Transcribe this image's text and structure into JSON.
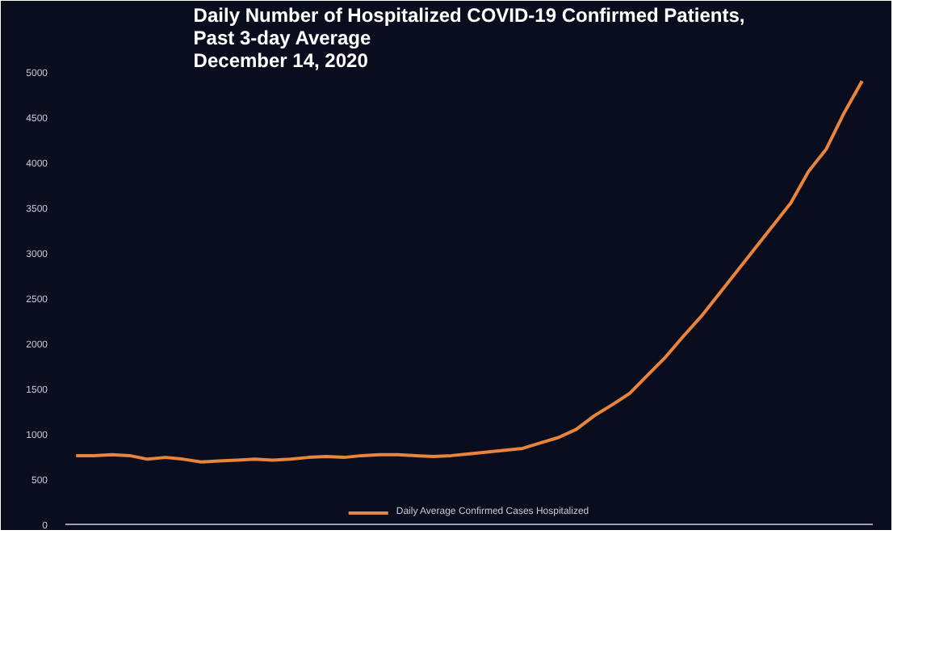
{
  "chart_data": {
    "type": "line",
    "title": "Daily Number of Hospitalized COVID-19 Confirmed Patients,\nPast 3-day Average\nDecember 14, 2020",
    "categories": [
      null,
      null,
      null,
      null,
      null,
      null,
      null,
      null,
      null,
      null,
      null,
      null,
      null,
      null,
      null,
      null,
      null,
      null,
      null,
      null,
      null,
      null,
      null,
      null,
      null,
      null,
      null,
      null,
      null,
      null,
      null,
      null,
      null,
      null,
      null,
      null,
      null,
      null,
      null,
      null,
      null,
      null,
      null,
      null,
      null
    ],
    "series": [
      {
        "name": "Daily Average Confirmed Cases Hospitalized",
        "color": "#e8843c",
        "values": [
          760,
          760,
          770,
          760,
          720,
          740,
          720,
          690,
          700,
          710,
          720,
          710,
          720,
          740,
          750,
          740,
          760,
          770,
          770,
          760,
          750,
          760,
          780,
          800,
          820,
          840,
          900,
          960,
          1050,
          1200,
          1320,
          1450,
          1650,
          1850,
          2080,
          2300,
          2550,
          2800,
          3050,
          3300,
          3550,
          3900,
          4150,
          4550,
          4900
        ]
      }
    ],
    "ylim": [
      0,
      5000
    ],
    "yticks": [
      0,
      500,
      1000,
      1500,
      2000,
      2500,
      3000,
      3500,
      4000,
      4500,
      5000
    ],
    "grid": false,
    "legend": "bottom",
    "tick_labels": "y",
    "line_style": "solid",
    "marker": "none"
  }
}
